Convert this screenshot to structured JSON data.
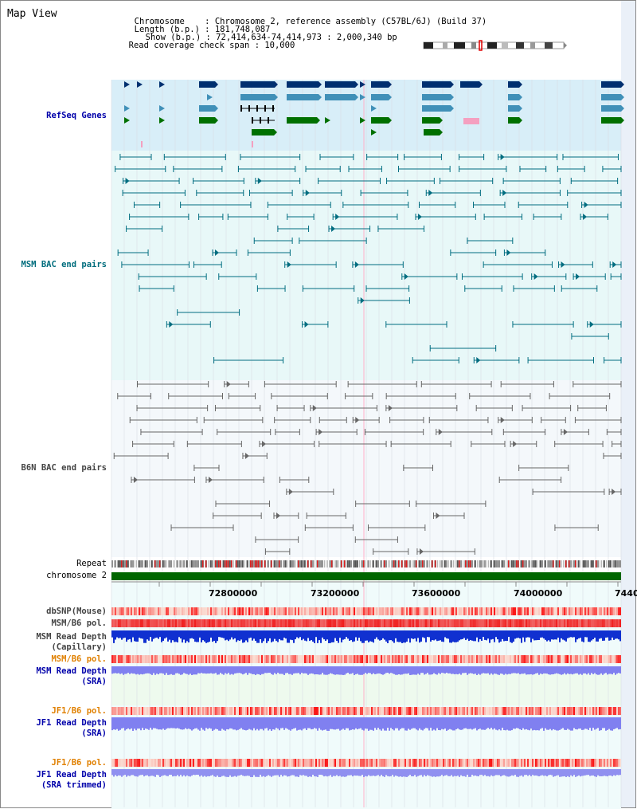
{
  "header": {
    "view_title": "Map View",
    "chromosome_label": "Chromosome",
    "chromosome_value": "Chromosome 2, reference assembly (C57BL/6J) (Build 37)",
    "length_label": "Length (b.p.)",
    "length_value": "181,748,087",
    "show_label": "Show (b.p.)",
    "show_value": "72,414,634-74,414,973 : 2,000,340 bp",
    "coverage_label": "Read coverage check span",
    "coverage_value": "10,000"
  },
  "tracks": {
    "refseq": "RefSeq Genes",
    "msm_bac": "MSM BAC end pairs",
    "b6n_bac": "B6N BAC end pairs",
    "repeat": "Repeat",
    "chromosome": "chromosome 2",
    "dbsnp": "dbSNP(Mouse)",
    "msm_b6_pol": "MSM/B6 pol.",
    "msm_read_depth_cap_1": "MSM Read Depth",
    "msm_read_depth_cap_2": "(Capillary)",
    "msm_b6_pol_sra": "MSM/B6 pol.",
    "msm_read_depth_sra_1": "MSM Read Depth",
    "msm_read_depth_sra_2": "(SRA)",
    "jf1_b6_pol": "JF1/B6 pol.",
    "jf1_read_depth_1": "JF1 Read Depth",
    "jf1_read_depth_2": "(SRA)",
    "jf1_b6_pol_trim": "JF1/B6 pol.",
    "jf1_read_depth_trim_1": "JF1 Read Depth",
    "jf1_read_depth_trim_2": "(SRA trimmed)"
  },
  "axis": {
    "ticks": [
      "72800000",
      "73200000",
      "73600000",
      "74000000",
      "7440"
    ]
  },
  "colors": {
    "refseq_bg": "#d8eef8",
    "bac_bg": "#e8f8f8",
    "gene_navy": "#003070",
    "gene_blue": "#4090b8",
    "gene_green": "#007000",
    "chromosome_bar": "#006600",
    "depth_blue": "#1030d0",
    "depth_light": "#8080f0"
  }
}
